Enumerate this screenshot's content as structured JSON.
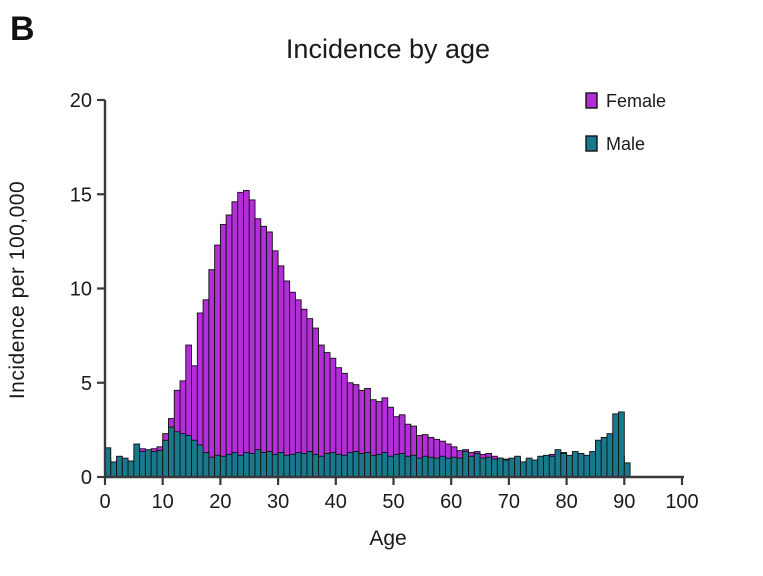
{
  "panel_label": "B",
  "chart_data": {
    "type": "bar",
    "subtype": "overlapped-histogram",
    "title": "Incidence by age",
    "xlabel": "Age",
    "ylabel": "Incidence per 100,000",
    "xlim": [
      0,
      100
    ],
    "ylim": [
      0,
      20
    ],
    "x_ticks": [
      0,
      10,
      20,
      30,
      40,
      50,
      60,
      70,
      80,
      90,
      100
    ],
    "y_ticks": [
      0,
      5,
      10,
      15,
      20
    ],
    "bin_width": 1,
    "grid": false,
    "legend_position": "top-right",
    "draw_order": "female-behind-male-front",
    "axis_color": "#3a3a3a",
    "bar_outline_color": "#111111",
    "legend": [
      {
        "label": "Female",
        "color": "#b32dd9"
      },
      {
        "label": "Male",
        "color": "#18798c"
      }
    ],
    "ages": [
      0,
      1,
      2,
      3,
      4,
      5,
      6,
      7,
      8,
      9,
      10,
      11,
      12,
      13,
      14,
      15,
      16,
      17,
      18,
      19,
      20,
      21,
      22,
      23,
      24,
      25,
      26,
      27,
      28,
      29,
      30,
      31,
      32,
      33,
      34,
      35,
      36,
      37,
      38,
      39,
      40,
      41,
      42,
      43,
      44,
      45,
      46,
      47,
      48,
      49,
      50,
      51,
      52,
      53,
      54,
      55,
      56,
      57,
      58,
      59,
      60,
      61,
      62,
      63,
      64,
      65,
      66,
      67,
      68,
      69,
      70,
      71,
      72,
      73,
      74,
      75,
      76,
      77,
      78,
      79,
      80,
      81,
      82,
      83,
      84,
      85,
      86,
      87,
      88,
      89,
      90
    ],
    "series": [
      {
        "name": "Female",
        "color": "#b32dd9",
        "values": [
          1.0,
          0.7,
          0.9,
          0.8,
          0.7,
          1.2,
          1.5,
          1.2,
          1.5,
          1.6,
          2.3,
          3.1,
          4.6,
          5.1,
          7.0,
          5.9,
          8.7,
          9.4,
          11.0,
          12.3,
          13.4,
          13.9,
          14.6,
          15.1,
          15.2,
          14.7,
          13.7,
          13.3,
          13.0,
          12.0,
          11.2,
          10.4,
          9.8,
          9.4,
          8.9,
          8.4,
          7.9,
          7.0,
          6.6,
          6.3,
          5.8,
          5.5,
          5.0,
          4.9,
          4.6,
          4.7,
          4.1,
          4.0,
          4.2,
          3.7,
          3.2,
          3.3,
          2.8,
          2.7,
          2.2,
          2.25,
          2.1,
          2.0,
          1.9,
          1.75,
          1.6,
          1.4,
          1.45,
          1.3,
          1.35,
          1.2,
          1.25,
          1.1,
          1.0,
          0.95,
          0.9,
          0.95,
          0.8,
          0.9,
          0.85,
          0.95,
          1.0,
          1.2,
          1.1,
          1.3,
          1.0,
          1.1,
          1.0,
          0.95,
          1.1,
          1.2,
          1.3,
          1.1,
          1.2,
          1.1,
          0.7
        ]
      },
      {
        "name": "Male",
        "color": "#18798c",
        "values": [
          1.55,
          0.8,
          1.1,
          1.0,
          0.85,
          1.75,
          1.35,
          1.45,
          1.35,
          1.4,
          1.95,
          2.65,
          2.4,
          2.3,
          2.2,
          1.95,
          1.7,
          1.3,
          1.05,
          1.15,
          1.1,
          1.2,
          1.3,
          1.15,
          1.3,
          1.25,
          1.45,
          1.3,
          1.35,
          1.2,
          1.3,
          1.15,
          1.2,
          1.3,
          1.25,
          1.35,
          1.2,
          1.1,
          1.25,
          1.3,
          1.2,
          1.15,
          1.3,
          1.35,
          1.25,
          1.3,
          1.15,
          1.2,
          1.3,
          1.1,
          1.2,
          1.25,
          1.1,
          1.15,
          1.0,
          1.1,
          1.05,
          1.0,
          1.1,
          1.0,
          1.05,
          1.0,
          1.35,
          1.1,
          1.25,
          1.0,
          1.05,
          0.95,
          1.0,
          0.9,
          1.0,
          1.1,
          0.8,
          1.0,
          0.9,
          1.1,
          1.15,
          1.1,
          1.45,
          1.25,
          1.15,
          1.35,
          1.25,
          1.15,
          1.35,
          1.95,
          2.1,
          2.3,
          3.35,
          3.45,
          0.75
        ]
      }
    ]
  }
}
